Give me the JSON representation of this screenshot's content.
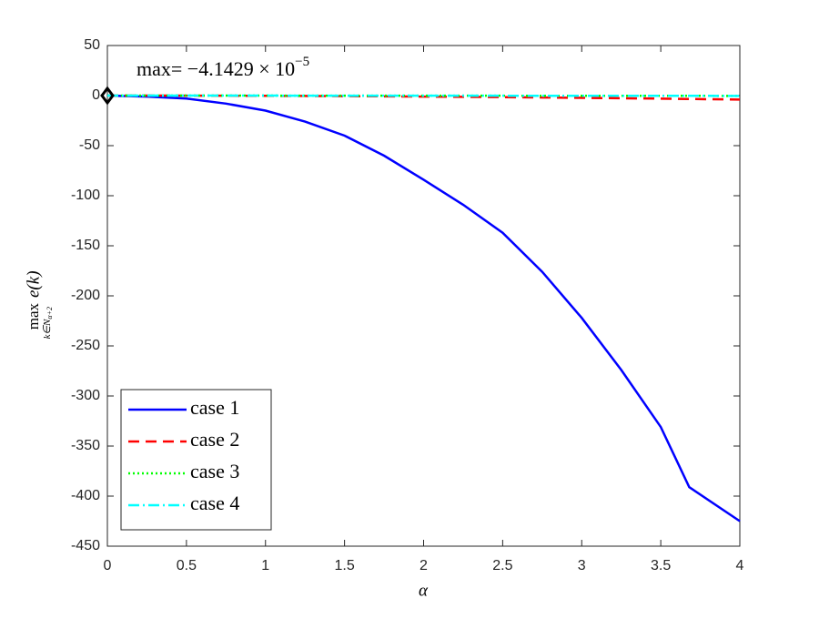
{
  "chart_data": {
    "type": "line",
    "xlabel": "α",
    "ylabel": {
      "op": "max",
      "sub": "k∈N",
      "subsub": "α+2",
      "body": "e(k)"
    },
    "annotation": {
      "text": "max= −4.1429 × 10",
      "exponent": "−5"
    },
    "marker": {
      "x": 0,
      "y": -4.1429e-05
    },
    "x": [
      0,
      0.25,
      0.5,
      0.75,
      1,
      1.25,
      1.5,
      1.75,
      2,
      2.25,
      2.5,
      2.75,
      3,
      3.25,
      3.5,
      3.68,
      4
    ],
    "series": [
      {
        "name": "case 1",
        "color": "#0000ff",
        "dash": "solid",
        "values": [
          0,
          -1,
          -3,
          -8,
          -15,
          -26,
          -40,
          -60,
          -84,
          -109,
          -137,
          -176,
          -222,
          -274,
          -331,
          -391,
          -425
        ]
      },
      {
        "name": "case 2",
        "color": "#ff0000",
        "dash": "dashed",
        "values": [
          0,
          -0.02,
          -0.06,
          -0.14,
          -0.25,
          -0.39,
          -0.56,
          -0.77,
          -1,
          -1.27,
          -1.56,
          -1.89,
          -2.25,
          -2.64,
          -3.06,
          -3.39,
          -4
        ]
      },
      {
        "name": "case 3",
        "color": "#00ff00",
        "dash": "dotted",
        "values": [
          0,
          -0.01,
          -0.02,
          -0.03,
          -0.05,
          -0.07,
          -0.09,
          -0.11,
          -0.13,
          -0.15,
          -0.17,
          -0.19,
          -0.21,
          -0.23,
          -0.25,
          -0.27,
          -0.3
        ]
      },
      {
        "name": "case 4",
        "color": "#00ffff",
        "dash": "dashdot",
        "values": [
          0,
          -0.01,
          -0.02,
          -0.03,
          -0.05,
          -0.07,
          -0.09,
          -0.11,
          -0.13,
          -0.15,
          -0.17,
          -0.19,
          -0.21,
          -0.23,
          -0.25,
          -0.27,
          -0.3
        ]
      }
    ],
    "xlim": [
      0,
      4
    ],
    "xticks": [
      0,
      0.5,
      1,
      1.5,
      2,
      2.5,
      3,
      3.5,
      4
    ],
    "ylim": [
      -450,
      50
    ],
    "yticks": [
      50,
      0,
      -50,
      -100,
      -150,
      -200,
      -250,
      -300,
      -350,
      -400,
      -450
    ],
    "legend": "lower left",
    "grid": false
  }
}
